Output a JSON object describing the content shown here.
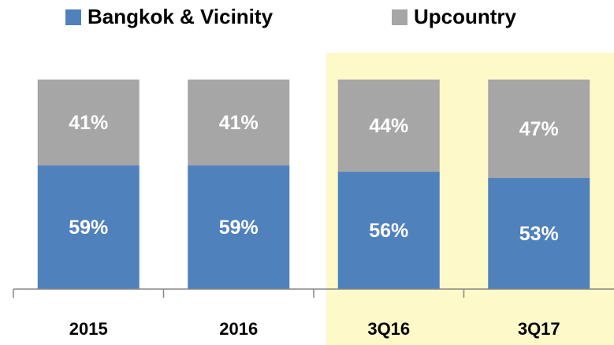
{
  "chart_data": {
    "type": "stacked_bar",
    "categories": [
      "2015",
      "2016",
      "3Q16",
      "3Q17"
    ],
    "series": [
      {
        "name": "Bangkok & Vicinity",
        "color": "#4f81bd",
        "values": [
          59,
          59,
          56,
          53
        ],
        "value_labels": [
          "59%",
          "59%",
          "56%",
          "53%"
        ]
      },
      {
        "name": "Upcountry",
        "color": "#a6a6a6",
        "values": [
          41,
          41,
          44,
          47
        ],
        "value_labels": [
          "41%",
          "41%",
          "44%",
          "47%"
        ]
      }
    ],
    "ylim": [
      0,
      100
    ],
    "legend": "top",
    "highlight_start": 2,
    "highlight_color": "#fdf9c9"
  }
}
